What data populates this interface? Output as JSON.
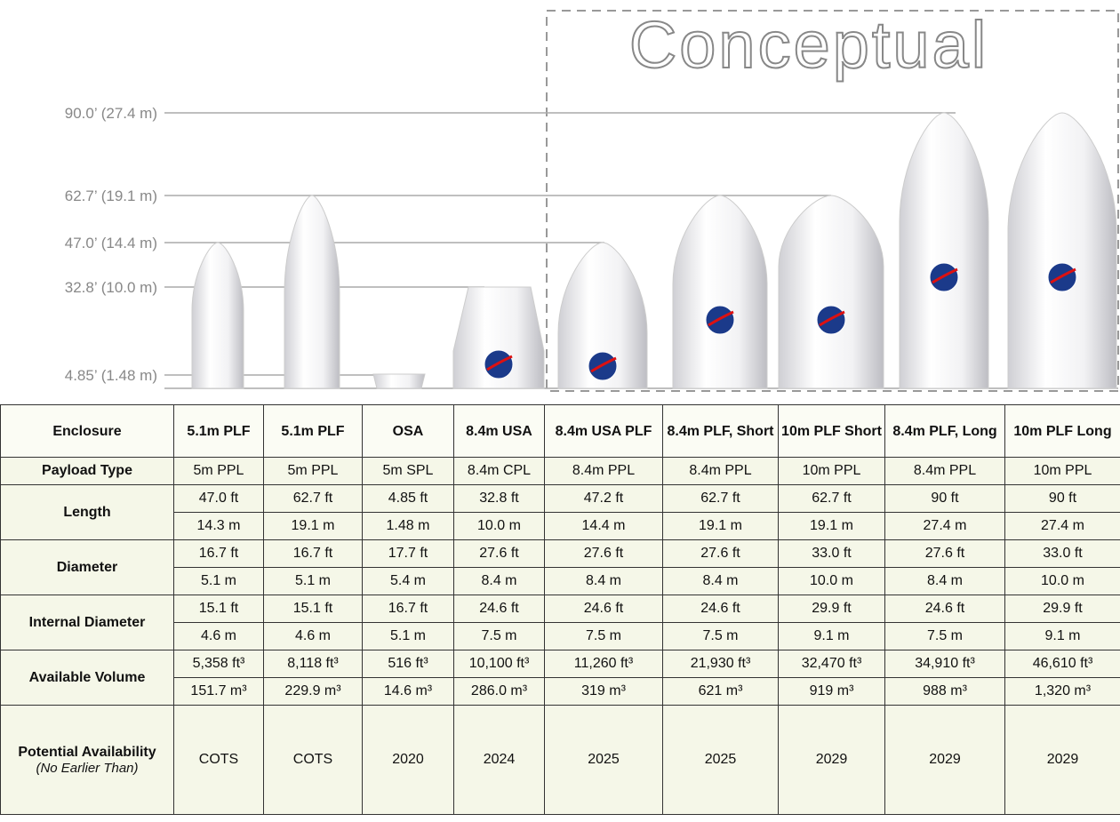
{
  "diagram": {
    "conceptual_label": "Conceptual",
    "height_labels": [
      "90.0’ (27.4 m)",
      "62.7’ (19.1 m)",
      "47.0’ (14.4 m)",
      "32.8’ (10.0 m)",
      "4.85’ (1.48 m)"
    ]
  },
  "table": {
    "header": [
      "Enclosure",
      "5.1m PLF",
      "5.1m PLF",
      "OSA",
      "8.4m USA",
      "8.4m USA PLF",
      "8.4m PLF, Short",
      "10m PLF Short",
      "8.4m PLF, Long",
      "10m PLF Long"
    ],
    "rows": [
      {
        "label": "Payload Type",
        "lines": [
          [
            "5m PPL",
            "5m PPL",
            "5m SPL",
            "8.4m CPL",
            "8.4m PPL",
            "8.4m PPL",
            "10m PPL",
            "8.4m PPL",
            "10m PPL"
          ]
        ]
      },
      {
        "label": "Length",
        "lines": [
          [
            "47.0 ft",
            "62.7 ft",
            "4.85 ft",
            "32.8 ft",
            "47.2 ft",
            "62.7 ft",
            "62.7 ft",
            "90 ft",
            "90 ft"
          ],
          [
            "14.3 m",
            "19.1 m",
            "1.48 m",
            "10.0 m",
            "14.4 m",
            "19.1 m",
            "19.1 m",
            "27.4 m",
            "27.4 m"
          ]
        ]
      },
      {
        "label": "Diameter",
        "lines": [
          [
            "16.7 ft",
            "16.7 ft",
            "17.7 ft",
            "27.6 ft",
            "27.6 ft",
            "27.6 ft",
            "33.0 ft",
            "27.6 ft",
            "33.0 ft"
          ],
          [
            "5.1 m",
            "5.1 m",
            "5.4 m",
            "8.4 m",
            "8.4 m",
            "8.4 m",
            "10.0 m",
            "8.4 m",
            "10.0 m"
          ]
        ]
      },
      {
        "label": "Internal Diameter",
        "lines": [
          [
            "15.1 ft",
            "15.1 ft",
            "16.7 ft",
            "24.6 ft",
            "24.6 ft",
            "24.6 ft",
            "29.9 ft",
            "24.6 ft",
            "29.9 ft"
          ],
          [
            "4.6 m",
            "4.6 m",
            "5.1 m",
            "7.5 m",
            "7.5 m",
            "7.5 m",
            "9.1 m",
            "7.5 m",
            "9.1 m"
          ]
        ]
      },
      {
        "label": "Available Volume",
        "lines": [
          [
            "5,358 ft³",
            "8,118 ft³",
            "516 ft³",
            "10,100 ft³",
            "11,260 ft³",
            "21,930 ft³",
            "32,470 ft³",
            "34,910 ft³",
            "46,610 ft³"
          ],
          [
            "151.7 m³",
            "229.9 m³",
            "14.6 m³",
            "286.0 m³",
            "319 m³",
            "621 m³",
            "919 m³",
            "988 m³",
            "1,320 m³"
          ]
        ]
      },
      {
        "label": "Potential Availability",
        "note": "(No Earlier Than)",
        "lines": [
          [
            "COTS",
            "COTS",
            "2020",
            "2024",
            "2025",
            "2025",
            "2029",
            "2029",
            "2029"
          ]
        ]
      }
    ]
  }
}
